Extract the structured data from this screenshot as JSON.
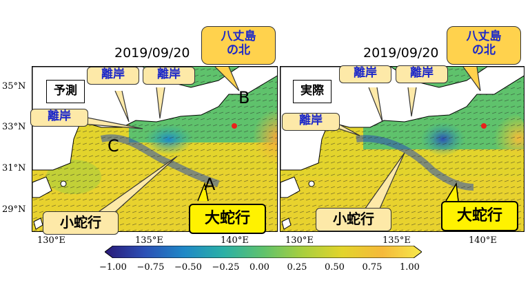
{
  "panels": [
    {
      "date": "2019/09/20",
      "tag": "予測",
      "callouts": {
        "hachijo": "八丈島の北",
        "rigan_a": "離岸",
        "rigan_b": "離岸",
        "rigan_c": "離岸"
      },
      "letters": {
        "a": "A",
        "b": "B",
        "c": "C"
      },
      "small_meander": "小蛇行",
      "large_meander": "大蛇行"
    },
    {
      "date": "2019/09/20",
      "tag": "実際",
      "callouts": {
        "hachijo": "八丈島の北",
        "rigan_a": "離岸",
        "rigan_b": "離岸",
        "rigan_c": "離岸"
      },
      "small_meander": "小蛇行",
      "large_meander": "大蛇行"
    }
  ],
  "axes": {
    "lat_ticks": [
      "35°N",
      "33°N",
      "31°N",
      "29°N"
    ],
    "lon_ticks": [
      "130°E",
      "135°E",
      "140°E"
    ]
  },
  "colorbar": {
    "min": -1.0,
    "max": 1.0,
    "tick_labels": [
      "−1.00",
      "−0.75",
      "−0.50",
      "−0.25",
      "0.00",
      "0.25",
      "0.50",
      "0.75",
      "1.00"
    ],
    "colors": [
      "#2a1a78",
      "#2b4fb5",
      "#1f88c7",
      "#2bb0a6",
      "#5fc26c",
      "#a9cf3e",
      "#e3d42c",
      "#f5b93a",
      "#f6e94a"
    ]
  },
  "colors": {
    "land": "#ffffff",
    "marker": "#e8221b",
    "callout_text": "#1b27c9"
  }
}
